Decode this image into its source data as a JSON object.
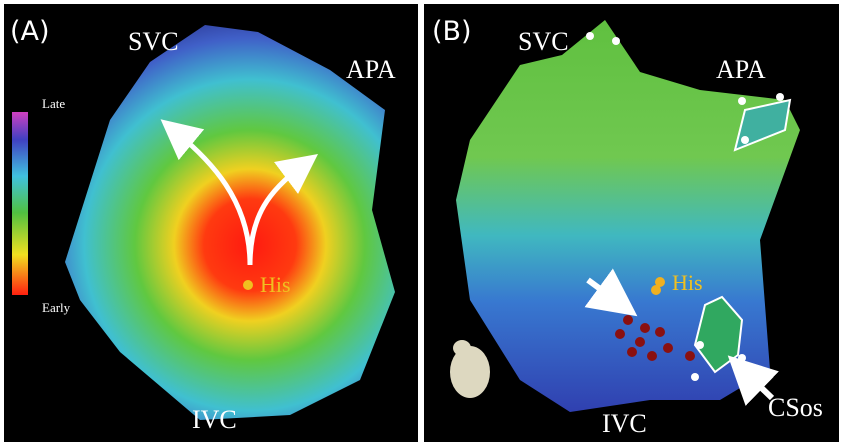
{
  "panel_a": {
    "label": "(A)",
    "svc": "SVC",
    "apa": "APA",
    "ivc": "IVC",
    "his": "His",
    "colorbar_top": "Late",
    "colorbar_bottom": "Early"
  },
  "panel_b": {
    "label": "(B)",
    "svc": "SVC",
    "apa": "APA",
    "ivc": "IVC",
    "his": "His",
    "csos": "CSos"
  }
}
